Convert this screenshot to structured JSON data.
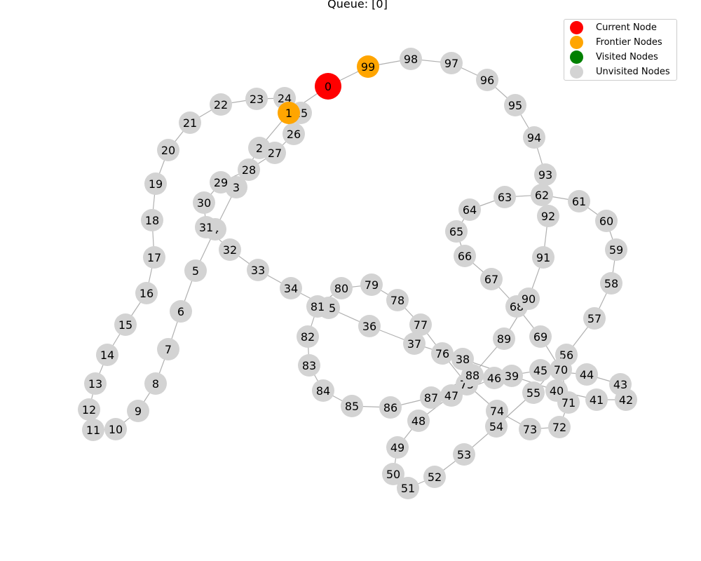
{
  "title": "Queue: [0]",
  "colors": {
    "current": "#ff0000",
    "frontier": "#ffa500",
    "visited": "#008000",
    "unvisited": "#d3d3d3",
    "edge": "#b0b0b0"
  },
  "legend": [
    {
      "label": "Current Node",
      "status": "current"
    },
    {
      "label": "Frontier Nodes",
      "status": "frontier"
    },
    {
      "label": "Visited Nodes",
      "status": "visited"
    },
    {
      "label": "Unvisited Nodes",
      "status": "unvisited"
    }
  ],
  "nodes": [
    {
      "id": "0",
      "status": "current"
    },
    {
      "id": "1",
      "status": "frontier"
    },
    {
      "id": "99",
      "status": "frontier"
    },
    {
      "id": "2",
      "status": "unvisited"
    },
    {
      "id": "3",
      "status": "unvisited"
    },
    {
      "id": "4",
      "status": "unvisited"
    },
    {
      "id": "5",
      "status": "unvisited"
    },
    {
      "id": "6",
      "status": "unvisited"
    },
    {
      "id": "7",
      "status": "unvisited"
    },
    {
      "id": "8",
      "status": "unvisited"
    },
    {
      "id": "9",
      "status": "unvisited"
    },
    {
      "id": "10",
      "status": "unvisited"
    },
    {
      "id": "11",
      "status": "unvisited"
    },
    {
      "id": "12",
      "status": "unvisited"
    },
    {
      "id": "13",
      "status": "unvisited"
    },
    {
      "id": "14",
      "status": "unvisited"
    },
    {
      "id": "15",
      "status": "unvisited"
    },
    {
      "id": "16",
      "status": "unvisited"
    },
    {
      "id": "17",
      "status": "unvisited"
    },
    {
      "id": "18",
      "status": "unvisited"
    },
    {
      "id": "19",
      "status": "unvisited"
    },
    {
      "id": "20",
      "status": "unvisited"
    },
    {
      "id": "21",
      "status": "unvisited"
    },
    {
      "id": "22",
      "status": "unvisited"
    },
    {
      "id": "23",
      "status": "unvisited"
    },
    {
      "id": "24",
      "status": "unvisited"
    },
    {
      "id": "25",
      "status": "unvisited"
    },
    {
      "id": "26",
      "status": "unvisited"
    },
    {
      "id": "27",
      "status": "unvisited"
    },
    {
      "id": "28",
      "status": "unvisited"
    },
    {
      "id": "29",
      "status": "unvisited"
    },
    {
      "id": "30",
      "status": "unvisited"
    },
    {
      "id": "31",
      "status": "unvisited"
    },
    {
      "id": "32",
      "status": "unvisited"
    },
    {
      "id": "33",
      "status": "unvisited"
    },
    {
      "id": "34",
      "status": "unvisited"
    },
    {
      "id": "35",
      "status": "unvisited"
    },
    {
      "id": "36",
      "status": "unvisited"
    },
    {
      "id": "37",
      "status": "unvisited"
    },
    {
      "id": "38",
      "status": "unvisited"
    },
    {
      "id": "39",
      "status": "unvisited"
    },
    {
      "id": "40",
      "status": "unvisited"
    },
    {
      "id": "41",
      "status": "unvisited"
    },
    {
      "id": "42",
      "status": "unvisited"
    },
    {
      "id": "43",
      "status": "unvisited"
    },
    {
      "id": "44",
      "status": "unvisited"
    },
    {
      "id": "45",
      "status": "unvisited"
    },
    {
      "id": "46",
      "status": "unvisited"
    },
    {
      "id": "47",
      "status": "unvisited"
    },
    {
      "id": "48",
      "status": "unvisited"
    },
    {
      "id": "49",
      "status": "unvisited"
    },
    {
      "id": "50",
      "status": "unvisited"
    },
    {
      "id": "51",
      "status": "unvisited"
    },
    {
      "id": "52",
      "status": "unvisited"
    },
    {
      "id": "53",
      "status": "unvisited"
    },
    {
      "id": "54",
      "status": "unvisited"
    },
    {
      "id": "55",
      "status": "unvisited"
    },
    {
      "id": "56",
      "status": "unvisited"
    },
    {
      "id": "57",
      "status": "unvisited"
    },
    {
      "id": "58",
      "status": "unvisited"
    },
    {
      "id": "59",
      "status": "unvisited"
    },
    {
      "id": "60",
      "status": "unvisited"
    },
    {
      "id": "61",
      "status": "unvisited"
    },
    {
      "id": "62",
      "status": "unvisited"
    },
    {
      "id": "63",
      "status": "unvisited"
    },
    {
      "id": "64",
      "status": "unvisited"
    },
    {
      "id": "65",
      "status": "unvisited"
    },
    {
      "id": "66",
      "status": "unvisited"
    },
    {
      "id": "67",
      "status": "unvisited"
    },
    {
      "id": "68",
      "status": "unvisited"
    },
    {
      "id": "69",
      "status": "unvisited"
    },
    {
      "id": "70",
      "status": "unvisited"
    },
    {
      "id": "71",
      "status": "unvisited"
    },
    {
      "id": "72",
      "status": "unvisited"
    },
    {
      "id": "73",
      "status": "unvisited"
    },
    {
      "id": "74",
      "status": "unvisited"
    },
    {
      "id": "75",
      "status": "unvisited"
    },
    {
      "id": "76",
      "status": "unvisited"
    },
    {
      "id": "77",
      "status": "unvisited"
    },
    {
      "id": "78",
      "status": "unvisited"
    },
    {
      "id": "79",
      "status": "unvisited"
    },
    {
      "id": "80",
      "status": "unvisited"
    },
    {
      "id": "81",
      "status": "unvisited"
    },
    {
      "id": "82",
      "status": "unvisited"
    },
    {
      "id": "83",
      "status": "unvisited"
    },
    {
      "id": "84",
      "status": "unvisited"
    },
    {
      "id": "85",
      "status": "unvisited"
    },
    {
      "id": "86",
      "status": "unvisited"
    },
    {
      "id": "87",
      "status": "unvisited"
    },
    {
      "id": "88",
      "status": "unvisited"
    },
    {
      "id": "89",
      "status": "unvisited"
    },
    {
      "id": "90",
      "status": "unvisited"
    },
    {
      "id": "91",
      "status": "unvisited"
    },
    {
      "id": "92",
      "status": "unvisited"
    },
    {
      "id": "93",
      "status": "unvisited"
    },
    {
      "id": "94",
      "status": "unvisited"
    },
    {
      "id": "95",
      "status": "unvisited"
    },
    {
      "id": "96",
      "status": "unvisited"
    },
    {
      "id": "97",
      "status": "unvisited"
    },
    {
      "id": "98",
      "status": "unvisited"
    }
  ],
  "edges": [
    [
      "0",
      "1"
    ],
    [
      "0",
      "99"
    ],
    [
      "99",
      "98"
    ],
    [
      "98",
      "97"
    ],
    [
      "97",
      "96"
    ],
    [
      "96",
      "95"
    ],
    [
      "95",
      "94"
    ],
    [
      "94",
      "93"
    ],
    [
      "93",
      "62"
    ],
    [
      "62",
      "63"
    ],
    [
      "63",
      "64"
    ],
    [
      "64",
      "65"
    ],
    [
      "65",
      "66"
    ],
    [
      "66",
      "67"
    ],
    [
      "67",
      "68"
    ],
    [
      "68",
      "69"
    ],
    [
      "69",
      "70"
    ],
    [
      "62",
      "61"
    ],
    [
      "61",
      "60"
    ],
    [
      "60",
      "59"
    ],
    [
      "59",
      "58"
    ],
    [
      "58",
      "57"
    ],
    [
      "57",
      "56"
    ],
    [
      "56",
      "55"
    ],
    [
      "55",
      "54"
    ],
    [
      "54",
      "53"
    ],
    [
      "53",
      "52"
    ],
    [
      "52",
      "51"
    ],
    [
      "51",
      "50"
    ],
    [
      "50",
      "49"
    ],
    [
      "49",
      "48"
    ],
    [
      "48",
      "47"
    ],
    [
      "47",
      "46"
    ],
    [
      "46",
      "45"
    ],
    [
      "45",
      "44"
    ],
    [
      "44",
      "43"
    ],
    [
      "43",
      "42"
    ],
    [
      "42",
      "41"
    ],
    [
      "41",
      "40"
    ],
    [
      "40",
      "39"
    ],
    [
      "39",
      "38"
    ],
    [
      "38",
      "37"
    ],
    [
      "37",
      "36"
    ],
    [
      "36",
      "35"
    ],
    [
      "35",
      "34"
    ],
    [
      "34",
      "33"
    ],
    [
      "33",
      "32"
    ],
    [
      "32",
      "31"
    ],
    [
      "31",
      "30"
    ],
    [
      "30",
      "29"
    ],
    [
      "29",
      "28"
    ],
    [
      "28",
      "27"
    ],
    [
      "27",
      "26"
    ],
    [
      "26",
      "25"
    ],
    [
      "25",
      "24"
    ],
    [
      "24",
      "23"
    ],
    [
      "23",
      "22"
    ],
    [
      "22",
      "21"
    ],
    [
      "21",
      "20"
    ],
    [
      "20",
      "19"
    ],
    [
      "19",
      "18"
    ],
    [
      "18",
      "17"
    ],
    [
      "17",
      "16"
    ],
    [
      "16",
      "15"
    ],
    [
      "15",
      "14"
    ],
    [
      "14",
      "13"
    ],
    [
      "13",
      "12"
    ],
    [
      "12",
      "11"
    ],
    [
      "11",
      "10"
    ],
    [
      "10",
      "9"
    ],
    [
      "9",
      "8"
    ],
    [
      "8",
      "7"
    ],
    [
      "7",
      "6"
    ],
    [
      "6",
      "5"
    ],
    [
      "5",
      "4"
    ],
    [
      "4",
      "3"
    ],
    [
      "3",
      "2"
    ],
    [
      "2",
      "1"
    ],
    [
      "62",
      "92"
    ],
    [
      "92",
      "91"
    ],
    [
      "91",
      "90"
    ],
    [
      "90",
      "89"
    ],
    [
      "89",
      "88"
    ],
    [
      "88",
      "87"
    ],
    [
      "87",
      "86"
    ],
    [
      "86",
      "85"
    ],
    [
      "85",
      "84"
    ],
    [
      "84",
      "83"
    ],
    [
      "83",
      "82"
    ],
    [
      "82",
      "81"
    ],
    [
      "81",
      "80"
    ],
    [
      "80",
      "79"
    ],
    [
      "79",
      "78"
    ],
    [
      "78",
      "77"
    ],
    [
      "77",
      "76"
    ],
    [
      "76",
      "75"
    ],
    [
      "75",
      "74"
    ],
    [
      "74",
      "73"
    ],
    [
      "73",
      "72"
    ],
    [
      "72",
      "71"
    ],
    [
      "71",
      "70"
    ],
    [
      "70",
      "45"
    ]
  ]
}
